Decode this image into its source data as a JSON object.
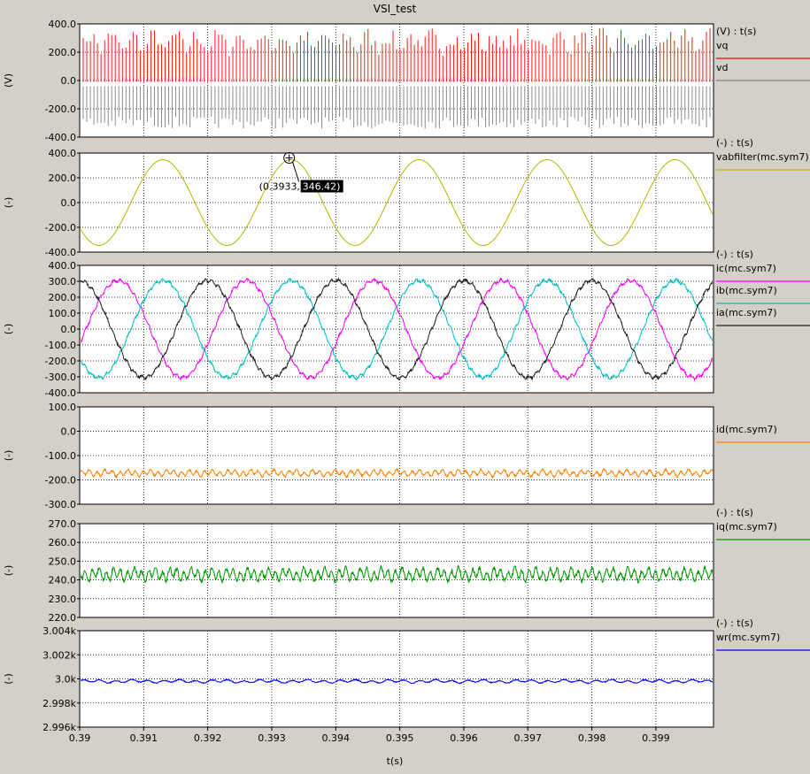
{
  "window": {
    "title": "VSI_test"
  },
  "x_axis": {
    "label": "t(s)",
    "range": [
      0.39,
      0.3999
    ],
    "ticks": [
      0.39,
      0.391,
      0.392,
      0.393,
      0.394,
      0.395,
      0.396,
      0.397,
      0.398,
      0.399
    ],
    "tick_labels": [
      "0.39",
      "0.391",
      "0.392",
      "0.393",
      "0.394",
      "0.395",
      "0.396",
      "0.397",
      "0.398",
      "0.399"
    ]
  },
  "chart_data": [
    {
      "type": "line",
      "ylabel": "(V)",
      "legend_header": "(V) : t(s)",
      "ylim": [
        -400,
        400
      ],
      "y_ticks": [
        400,
        200,
        0,
        -200,
        -400
      ],
      "y_tick_labels": [
        "400.0",
        "200.0",
        "0.0",
        "-200.0",
        "-400.0"
      ],
      "grid": true,
      "series": [
        {
          "name": "vq",
          "color": "#ff0000",
          "waveform": "pwm_pos",
          "amplitude": 320,
          "period_s": 0.000333
        },
        {
          "name": "vd",
          "color": "#808080",
          "waveform": "pwm_neg",
          "amplitude": 340,
          "period_s": 0.000333
        }
      ]
    },
    {
      "type": "line",
      "ylabel": "(-)",
      "legend_header": "(-) : t(s)",
      "ylim": [
        -400,
        400
      ],
      "y_ticks": [
        400,
        200,
        0,
        -200,
        -400
      ],
      "y_tick_labels": [
        "400.0",
        "200.0",
        "0.0",
        "-200.0",
        "-400.0"
      ],
      "grid": true,
      "annotation": {
        "x": 0.3933,
        "y": 346.42,
        "x_text": "(0.3933,",
        "y_text": "346.42)"
      },
      "series": [
        {
          "name": "vabfilter(mc.sym7)",
          "color": "#b5b500",
          "waveform": "sine",
          "amplitude": 346.42,
          "offset": 0,
          "period_s": 0.002,
          "peak_t": 0.3933
        }
      ]
    },
    {
      "type": "line",
      "ylabel": "(-)",
      "legend_header": "(-) : t(s)",
      "ylim": [
        -400,
        400
      ],
      "y_ticks": [
        400,
        300,
        200,
        100,
        0,
        -100,
        -200,
        -300,
        -400
      ],
      "y_tick_labels": [
        "400.0",
        "300.0",
        "200.0",
        "100.0",
        "0.0",
        "-100.0",
        "-200.0",
        "-300.0",
        "-400.0"
      ],
      "grid": true,
      "series": [
        {
          "name": "ic(mc.sym7)",
          "color": "#ff00ff",
          "waveform": "sine",
          "amplitude": 305,
          "offset": 0,
          "period_s": 0.002,
          "peak_t": 0.3906,
          "ripple": 14
        },
        {
          "name": "ib(mc.sym7)",
          "color": "#00c0c0",
          "waveform": "sine",
          "amplitude": 305,
          "offset": 0,
          "period_s": 0.002,
          "peak_t": 0.3913,
          "ripple": 14
        },
        {
          "name": "ia(mc.sym7)",
          "color": "#202020",
          "waveform": "sine",
          "amplitude": 305,
          "offset": 0,
          "period_s": 0.002,
          "peak_t": 0.392,
          "ripple": 14
        }
      ]
    },
    {
      "type": "line",
      "ylabel": "(-)",
      "legend_header": "",
      "ylim": [
        -300,
        100
      ],
      "y_ticks": [
        100,
        0,
        -100,
        -200,
        -300
      ],
      "y_tick_labels": [
        "100.0",
        "0.0",
        "-100.0",
        "-200.0",
        "-300.0"
      ],
      "grid": true,
      "series": [
        {
          "name": "id(mc.sym7)",
          "color": "#ff8000",
          "waveform": "noise",
          "offset": -172,
          "ripple": 18,
          "period_s": 0.00012
        }
      ]
    },
    {
      "type": "line",
      "ylabel": "(-)",
      "legend_header": "(-) : t(s)",
      "ylim": [
        220,
        270
      ],
      "y_ticks": [
        270,
        260,
        250,
        240,
        230,
        220
      ],
      "y_tick_labels": [
        "270.0",
        "260.0",
        "250.0",
        "240.0",
        "230.0",
        "220.0"
      ],
      "grid": true,
      "series": [
        {
          "name": "iq(mc.sym7)",
          "color": "#009900",
          "waveform": "noise",
          "offset": 243,
          "ripple": 4.5,
          "period_s": 0.00011
        }
      ]
    },
    {
      "type": "line",
      "ylabel": "(-)",
      "legend_header": "(-) : t(s)",
      "ylim": [
        2996,
        3004
      ],
      "y_ticks": [
        3004,
        3002,
        3000,
        2998,
        2996
      ],
      "y_tick_labels": [
        "3.004k",
        "3.002k",
        "3.0k",
        "2.998k",
        "2.996k"
      ],
      "grid": true,
      "series": [
        {
          "name": "wr(mc.sym7)",
          "color": "#0000ff",
          "waveform": "noise",
          "offset": 2999.8,
          "ripple": 0.18,
          "period_s": 0.00025
        }
      ]
    }
  ]
}
